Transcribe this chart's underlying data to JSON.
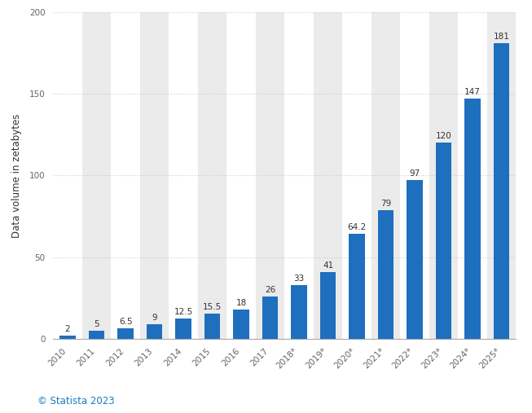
{
  "categories": [
    "2010",
    "2011",
    "2012",
    "2013",
    "2014",
    "2015",
    "2016",
    "2017",
    "2018*",
    "2019*",
    "2020*",
    "2021*",
    "2022*",
    "2023*",
    "2024*",
    "2025*"
  ],
  "values": [
    2,
    5,
    6.5,
    9,
    12.5,
    15.5,
    18,
    26,
    33,
    41,
    64.2,
    79,
    97,
    120,
    147,
    181
  ],
  "bar_color": "#1f6fbf",
  "ylabel": "Data volume in zetabytes",
  "ylim": [
    0,
    200
  ],
  "yticks": [
    0,
    50,
    100,
    150,
    200
  ],
  "background_color": "#ffffff",
  "plot_bg_color_light": "#ffffff",
  "plot_bg_color_dark": "#ebebeb",
  "grid_color": "#cccccc",
  "value_fontsize": 7.5,
  "ylabel_fontsize": 8.5,
  "tick_fontsize": 7.5,
  "footer_text": "© Statista 2023",
  "footer_color": "#1a7abf"
}
